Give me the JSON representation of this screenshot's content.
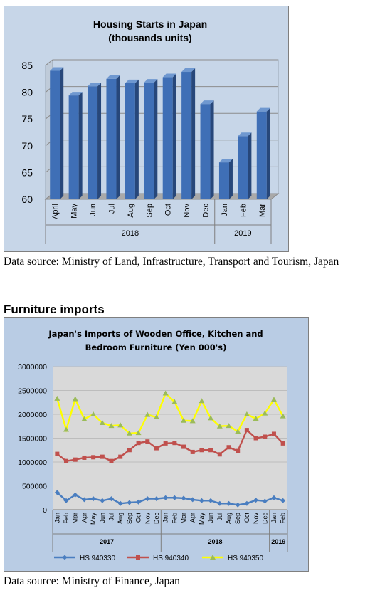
{
  "chart1": {
    "chart_data": {
      "type": "bar",
      "title_line1": "Housing Starts in Japan",
      "title_line2": "(thousands units)",
      "categories": [
        "April",
        "May",
        "Jun",
        "Jul",
        "Aug",
        "Sep",
        "Oct",
        "Nov",
        "Dec",
        "Jan",
        "Feb",
        "Mar"
      ],
      "values": [
        84,
        79.4,
        81.1,
        82.5,
        81.7,
        81.8,
        82.8,
        83.8,
        77.8,
        66.9,
        71.8,
        76.4
      ],
      "year_groups": [
        {
          "label": "2018",
          "start": 0,
          "end": 8
        },
        {
          "label": "2019",
          "start": 9,
          "end": 11
        }
      ],
      "yticks": [
        "60",
        "65",
        "70",
        "75",
        "80",
        "85"
      ],
      "ylim": [
        60,
        85
      ],
      "grid": true,
      "bar_color": "#3f6fb6"
    },
    "source": "Data source: Ministry of Land, Infrastructure, Transport and Tourism, Japan"
  },
  "section_heading": "Furniture imports",
  "chart2": {
    "chart_data": {
      "type": "line",
      "title_line1": "Japan's Imports of  Wooden  Office, Kitchen and",
      "title_line2": "Bedroom Furniture (Yen 000's)",
      "categories": [
        "Jan",
        "Feb",
        "Mar",
        "Apr",
        "May",
        "Jun",
        "Jul",
        "Aug",
        "Sep",
        "Oct",
        "Nov",
        "Dec",
        "Jan",
        "Feb",
        "Mar",
        "Apr",
        "May",
        "Jun",
        "Jul",
        "Aug",
        "Sep",
        "Oct",
        "Nov",
        "Dec",
        "Jan",
        "Feb"
      ],
      "year_groups": [
        {
          "label": "2017",
          "start": 0,
          "end": 11
        },
        {
          "label": "2018",
          "start": 12,
          "end": 23
        },
        {
          "label": "2019",
          "start": 24,
          "end": 25
        }
      ],
      "yticks": [
        "0",
        "500000",
        "1000000",
        "1500000",
        "2000000",
        "2500000",
        "3000000"
      ],
      "ylim": [
        0,
        3000000
      ],
      "legend_position": "bottom",
      "series": [
        {
          "name": "HS 940330",
          "color": "#4a7ec0",
          "marker": "diamond",
          "values": [
            360000,
            190000,
            310000,
            210000,
            230000,
            190000,
            230000,
            130000,
            150000,
            160000,
            230000,
            230000,
            250000,
            250000,
            240000,
            210000,
            190000,
            190000,
            130000,
            130000,
            100000,
            130000,
            200000,
            180000,
            250000,
            190000
          ]
        },
        {
          "name": "HS 940340",
          "color": "#c0504d",
          "marker": "square",
          "values": [
            1170000,
            1020000,
            1050000,
            1090000,
            1100000,
            1110000,
            1020000,
            1110000,
            1250000,
            1400000,
            1430000,
            1290000,
            1390000,
            1400000,
            1320000,
            1210000,
            1250000,
            1250000,
            1160000,
            1310000,
            1230000,
            1670000,
            1500000,
            1530000,
            1590000,
            1390000
          ]
        },
        {
          "name": "HS 940350",
          "color": "#ffff00",
          "marker": "triangle",
          "values": [
            2330000,
            1680000,
            2320000,
            1900000,
            2000000,
            1820000,
            1760000,
            1770000,
            1600000,
            1610000,
            1990000,
            1940000,
            2440000,
            2260000,
            1870000,
            1860000,
            2280000,
            1920000,
            1750000,
            1760000,
            1640000,
            2000000,
            1910000,
            2020000,
            2310000,
            1960000
          ]
        }
      ]
    },
    "source": "Data source: Ministry of Finance, Japan"
  }
}
